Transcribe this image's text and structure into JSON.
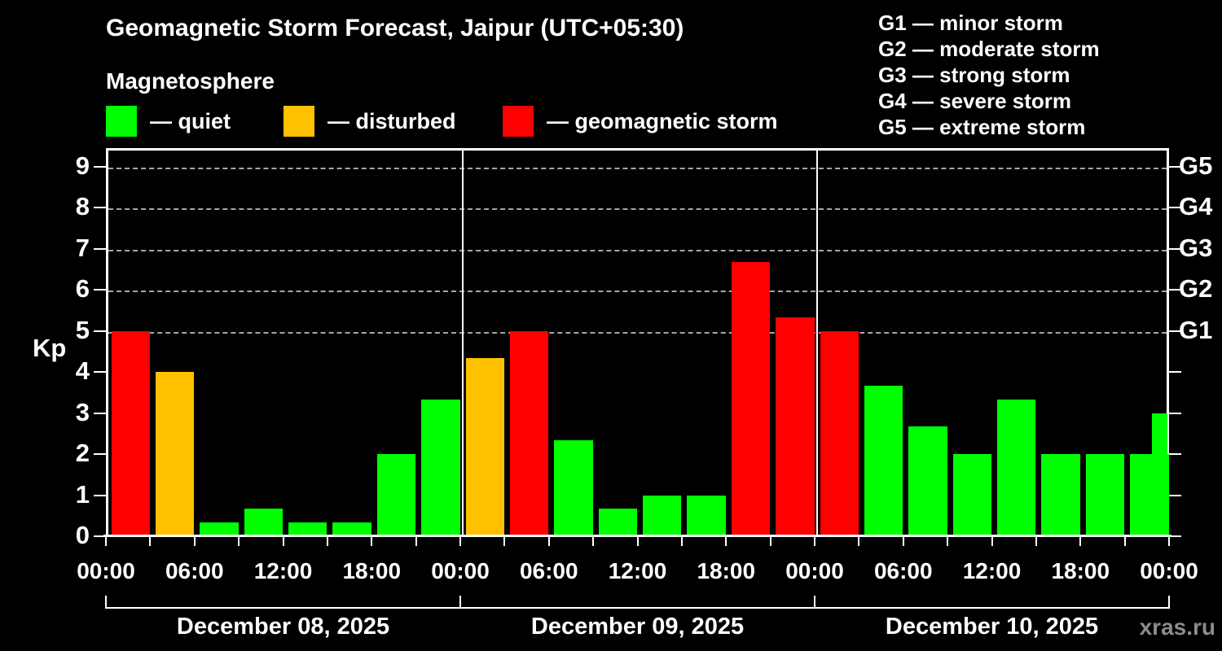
{
  "title": "Geomagnetic Storm Forecast, Jaipur (UTC+05:30)",
  "subtitle": "Magnetosphere",
  "legend": {
    "items": [
      {
        "condition": "quiet",
        "label": "— quiet",
        "color": "#00ff00"
      },
      {
        "condition": "disturbed",
        "label": "— disturbed",
        "color": "#ffc000"
      },
      {
        "condition": "storm",
        "label": "— geomagnetic storm",
        "color": "#ff0000"
      }
    ]
  },
  "storm_scale_legend": [
    "G1 — minor storm",
    "G2 — moderate storm",
    "G3 — strong storm",
    "G4 — severe storm",
    "G5 — extreme storm"
  ],
  "watermark": "xras.ru",
  "colors": {
    "background": "#000000",
    "axis": "#ffffff",
    "grid": "#a6a6a6",
    "text": "#ffffff",
    "watermark": "#8c8c8c"
  },
  "chart_data": {
    "type": "bar",
    "title": "Geomagnetic Storm Forecast, Jaipur (UTC+05:30)",
    "ylabel": "Kp",
    "ylim": [
      0,
      9.45
    ],
    "yticks": [
      0,
      1,
      2,
      3,
      4,
      5,
      6,
      7,
      8,
      9
    ],
    "gridlines_kp": [
      5,
      6,
      7,
      8,
      9
    ],
    "grid_style": "dashed horizontal lines at G-storm levels only",
    "right_axis_labels": [
      {
        "label": "G5",
        "kp": 9
      },
      {
        "label": "G4",
        "kp": 8
      },
      {
        "label": "G3",
        "kp": 7
      },
      {
        "label": "G2",
        "kp": 6
      },
      {
        "label": "G1",
        "kp": 5
      }
    ],
    "hours_per_bar": 3,
    "x_tick_labels": [
      "00:00",
      "06:00",
      "12:00",
      "18:00",
      "00:00",
      "06:00",
      "12:00",
      "18:00",
      "00:00",
      "06:00",
      "12:00",
      "18:00",
      "00:00"
    ],
    "days": [
      {
        "date": "December 08, 2025",
        "values": [
          5,
          4,
          0.33,
          0.67,
          0.33,
          0.33,
          2,
          3.33
        ],
        "conditions": [
          "storm",
          "disturbed",
          "quiet",
          "quiet",
          "quiet",
          "quiet",
          "quiet",
          "quiet"
        ]
      },
      {
        "date": "December 09, 2025",
        "values": [
          4.33,
          5,
          2.33,
          0.67,
          1,
          1,
          6.67,
          5.33
        ],
        "conditions": [
          "disturbed",
          "storm",
          "quiet",
          "quiet",
          "quiet",
          "quiet",
          "storm",
          "storm"
        ]
      },
      {
        "date": "December 10, 2025",
        "values": [
          5,
          3.67,
          2.67,
          2,
          3.33,
          2,
          2,
          2
        ],
        "conditions": [
          "storm",
          "quiet",
          "quiet",
          "quiet",
          "quiet",
          "quiet",
          "quiet",
          "quiet"
        ]
      }
    ],
    "next_period_partial_bar": {
      "value": 3,
      "condition": "quiet"
    }
  }
}
